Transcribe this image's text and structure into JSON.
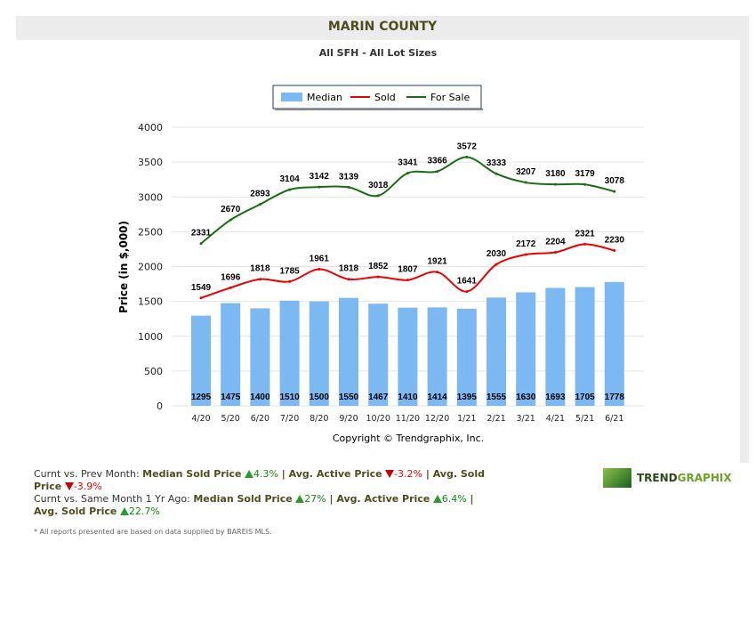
{
  "header": {
    "title": "MARIN COUNTY",
    "subtitle": "All SFH - All Lot Sizes"
  },
  "chart_data": {
    "type": "bar+line",
    "categories": [
      "4/20",
      "5/20",
      "6/20",
      "7/20",
      "8/20",
      "9/20",
      "10/20",
      "11/20",
      "12/20",
      "1/21",
      "2/21",
      "3/21",
      "4/21",
      "5/21",
      "6/21"
    ],
    "series": [
      {
        "name": "Median",
        "type": "bar",
        "color": "#7cb9f2",
        "values": [
          1295,
          1475,
          1400,
          1510,
          1500,
          1550,
          1467,
          1410,
          1414,
          1395,
          1555,
          1630,
          1693,
          1705,
          1778
        ]
      },
      {
        "name": "Sold",
        "type": "line",
        "color": "#ee0000",
        "values": [
          1549,
          1696,
          1818,
          1785,
          1961,
          1818,
          1852,
          1807,
          1921,
          1641,
          2030,
          2172,
          2204,
          2321,
          2230
        ]
      },
      {
        "name": "For Sale",
        "type": "line",
        "color": "#1a6e12",
        "values": [
          2331,
          2670,
          2893,
          3104,
          3142,
          3139,
          3018,
          3341,
          3366,
          3572,
          3333,
          3207,
          3180,
          3179,
          3078
        ]
      }
    ],
    "ylabel": "Price (in $,000)",
    "ylim": [
      0,
      4000
    ],
    "yticks": [
      0,
      500,
      1000,
      1500,
      2000,
      2500,
      3000,
      3500,
      4000
    ],
    "grid": true,
    "legend": "top-center",
    "credit": "Copyright © Trendgraphix, Inc."
  },
  "stats": {
    "line1_label": "Curnt vs. Prev Month: ",
    "line2_label": "Curnt vs. Same Month 1 Yr Ago: ",
    "median": "Median Sold Price",
    "active": "Avg. Active Price",
    "sold": "Avg. Sold Price",
    "sep": " | ",
    "m_med": "4.3%",
    "m_act": "-3.2%",
    "m_sold": "-3.9%",
    "y_med": "27%",
    "y_act": "6.4%",
    "y_sold": "22.7%"
  },
  "logo": {
    "text1": "TREND",
    "text2": "GRAPHIX"
  },
  "footnote": "* All reports presented are based on data supplied by BAREIS MLS."
}
